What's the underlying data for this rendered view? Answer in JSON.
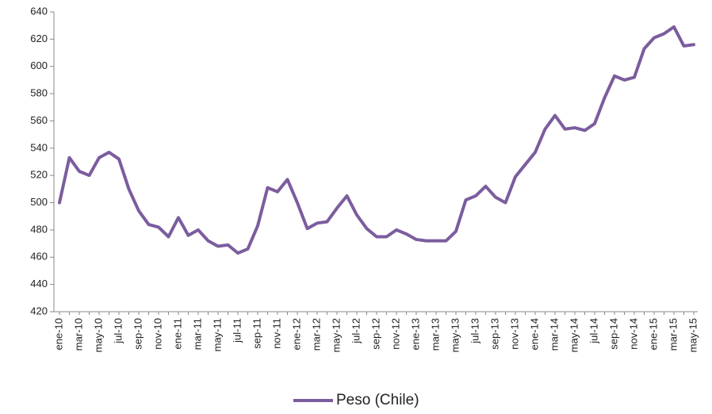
{
  "chart_data": {
    "type": "line",
    "categories": [
      "ene-10",
      null,
      "mar-10",
      null,
      "may-10",
      null,
      "jul-10",
      null,
      "sep-10",
      null,
      "nov-10",
      null,
      "ene-11",
      null,
      "mar-11",
      null,
      "may-11",
      null,
      "jul-11",
      null,
      "sep-11",
      null,
      "nov-11",
      null,
      "ene-12",
      null,
      "mar-12",
      null,
      "may-12",
      null,
      "jul-12",
      null,
      "sep-12",
      null,
      "nov-12",
      null,
      "ene-13",
      null,
      "mar-13",
      null,
      "may-13",
      null,
      "jul-13",
      null,
      "sep-13",
      null,
      "nov-13",
      null,
      "ene-14",
      null,
      "mar-14",
      null,
      "may-14",
      null,
      "jul-14",
      null,
      "sep-14",
      null,
      "nov-14",
      null,
      "ene-15",
      null,
      "mar-15",
      null,
      "may-15"
    ],
    "series": [
      {
        "name": "Peso (Chile)",
        "color": "#7b5d9e",
        "values": [
          500,
          533,
          523,
          520,
          533,
          537,
          532,
          510,
          494,
          484,
          482,
          475,
          489,
          476,
          480,
          472,
          468,
          469,
          463,
          466,
          483,
          511,
          508,
          517,
          500,
          481,
          485,
          486,
          496,
          505,
          491,
          481,
          475,
          475,
          480,
          477,
          473,
          472,
          472,
          472,
          479,
          502,
          505,
          512,
          504,
          500,
          519,
          528,
          537,
          554,
          564,
          554,
          555,
          553,
          558,
          577,
          593,
          590,
          592,
          613,
          621,
          624,
          629,
          615,
          616
        ]
      }
    ],
    "ylim": [
      420,
      640
    ],
    "yticks": [
      420,
      440,
      460,
      480,
      500,
      520,
      540,
      560,
      580,
      600,
      620,
      640
    ],
    "grid": false,
    "legend": "bottom"
  }
}
